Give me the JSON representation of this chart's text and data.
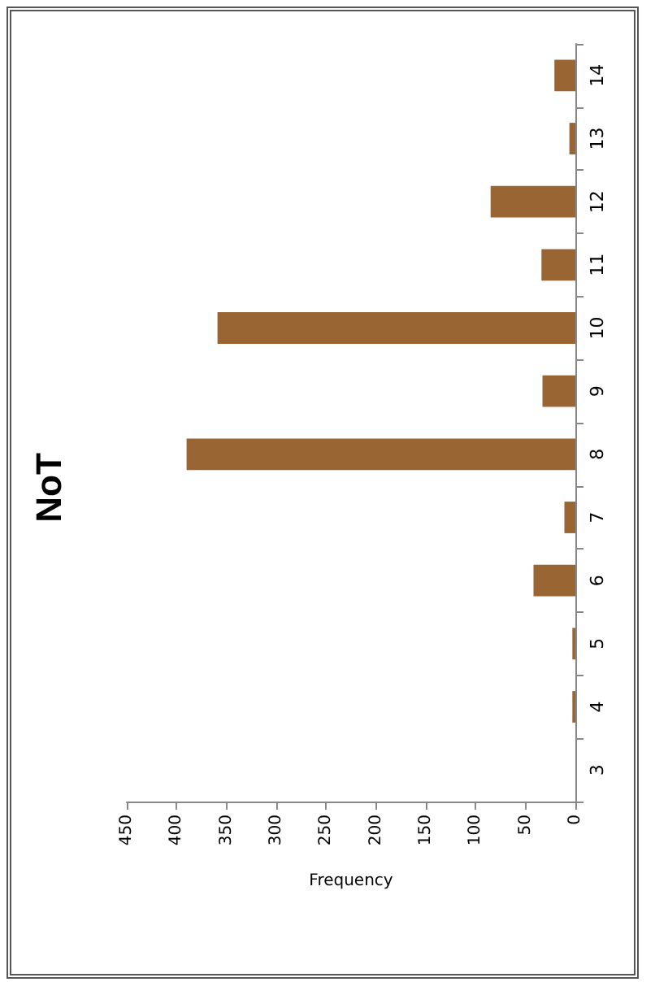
{
  "chart_data": {
    "type": "bar",
    "orientation": "horizontal",
    "title": "NoT",
    "xlabel": "Frequency",
    "categories": [
      "14",
      "13",
      "12",
      "11",
      "10",
      "9",
      "8",
      "7",
      "6",
      "5",
      "4",
      "3"
    ],
    "values": [
      21,
      6,
      85,
      34,
      359,
      33,
      390,
      11,
      42,
      3,
      3,
      0
    ],
    "color": "#996633",
    "xlim": [
      450,
      0
    ],
    "xticks": [
      0,
      50,
      100,
      150,
      200,
      250,
      300,
      350,
      400,
      450
    ],
    "grid": false
  }
}
